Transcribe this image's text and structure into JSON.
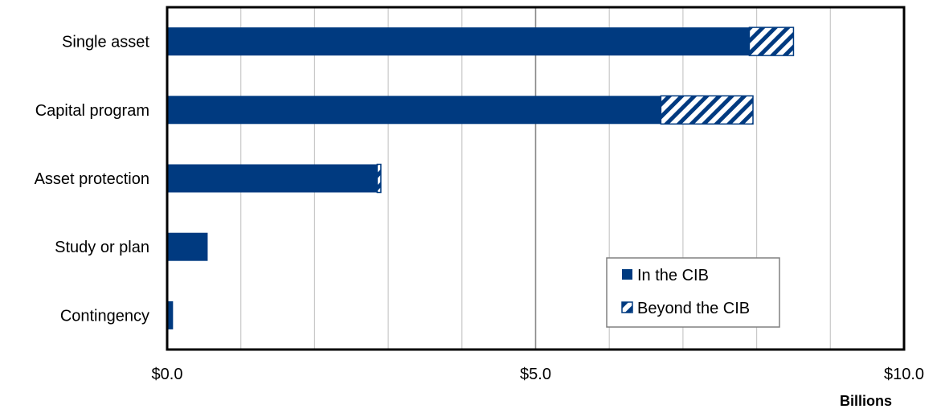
{
  "chart_data": {
    "type": "bar",
    "orientation": "horizontal",
    "stacked": true,
    "categories": [
      "Single asset",
      "Capital program",
      "Asset protection",
      "Study or plan",
      "Contingency"
    ],
    "series": [
      {
        "name": "In the CIB",
        "values": [
          7.9,
          6.7,
          2.85,
          0.55,
          0.08
        ],
        "color": "#003a80",
        "pattern": "solid"
      },
      {
        "name": "Beyond the CIB",
        "values": [
          0.6,
          1.25,
          0.05,
          0.0,
          0.0
        ],
        "color": "#003a80",
        "pattern": "diagonal-hatch"
      }
    ],
    "x_ticks": [
      "$0.0",
      "$5.0",
      "$10.0"
    ],
    "xlim": [
      0,
      10
    ],
    "minor_grid_step": 1,
    "grid": true,
    "x_unit_label": "Billions",
    "legend_position": "lower-right-inside"
  }
}
